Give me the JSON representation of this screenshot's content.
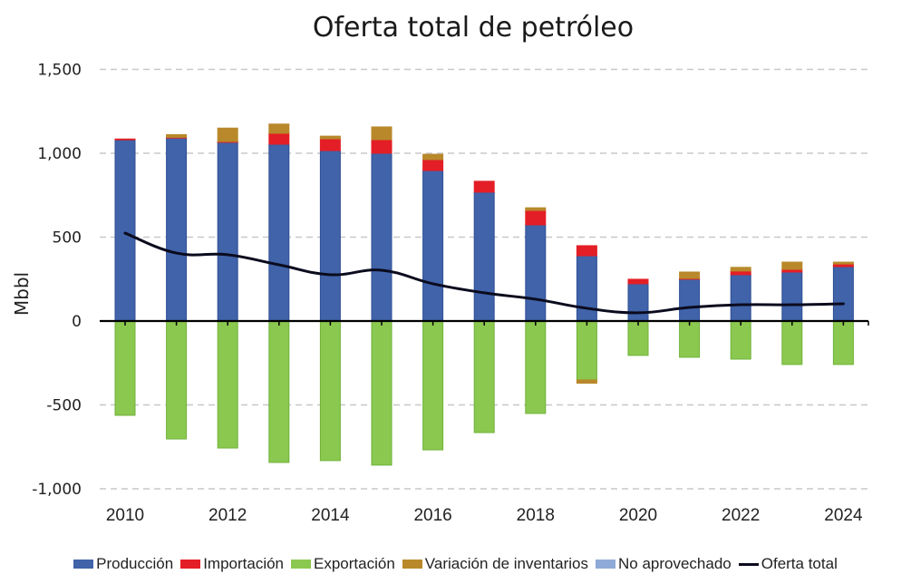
{
  "chart_data": {
    "type": "bar",
    "title": "Oferta total de petróleo",
    "xlabel": "",
    "ylabel": "Mbbl",
    "ylim": [
      -1000,
      1500
    ],
    "yticks": [
      1500,
      1000,
      500,
      0,
      -500,
      -1000
    ],
    "ytick_labels": [
      "1,500",
      "1,000",
      "500",
      "0",
      "-500",
      "-1,000"
    ],
    "grid": true,
    "legend_position": "bottom",
    "categories": [
      2010,
      2011,
      2012,
      2013,
      2014,
      2015,
      2016,
      2017,
      2018,
      2019,
      2020,
      2021,
      2022,
      2023,
      2024
    ],
    "xtick_labels": [
      "2010",
      "2012",
      "2014",
      "2016",
      "2018",
      "2020",
      "2022",
      "2024"
    ],
    "stacked": true,
    "series": [
      {
        "name": "Producción",
        "kind": "bar",
        "color": "#4063a9",
        "values": [
          1080,
          1092,
          1065,
          1054,
          1016,
          1000,
          897,
          768,
          573,
          389,
          222,
          249,
          276,
          292,
          324
        ]
      },
      {
        "name": "Importación",
        "kind": "bar",
        "color": "#e41e26",
        "values": [
          5,
          3,
          5,
          65,
          70,
          81,
          65,
          65,
          86,
          60,
          27,
          5,
          22,
          16,
          16
        ]
      },
      {
        "name": "Exportación",
        "kind": "bar",
        "color": "#8bc84f",
        "values": [
          -562,
          -703,
          -757,
          -843,
          -832,
          -859,
          -768,
          -665,
          -551,
          -351,
          -205,
          -216,
          -227,
          -259,
          -259
        ]
      },
      {
        "name": "Variación de inventarios",
        "kind": "bar",
        "color": "#b8882a",
        "values": [
          0,
          16,
          80,
          55,
          16,
          76,
          32,
          0,
          16,
          -20,
          0,
          38,
          22,
          43,
          11
        ]
      },
      {
        "name": "No aprovechado",
        "kind": "bar",
        "color": "#8faad8",
        "values": [
          0,
          0,
          0,
          0,
          0,
          0,
          0,
          0,
          0,
          0,
          0,
          0,
          0,
          0,
          0
        ]
      },
      {
        "name": "Oferta total",
        "kind": "line",
        "color": "#0b0b1e",
        "values": [
          524,
          405,
          395,
          335,
          276,
          303,
          222,
          168,
          130,
          76,
          49,
          81,
          97,
          97,
          103
        ]
      }
    ]
  }
}
